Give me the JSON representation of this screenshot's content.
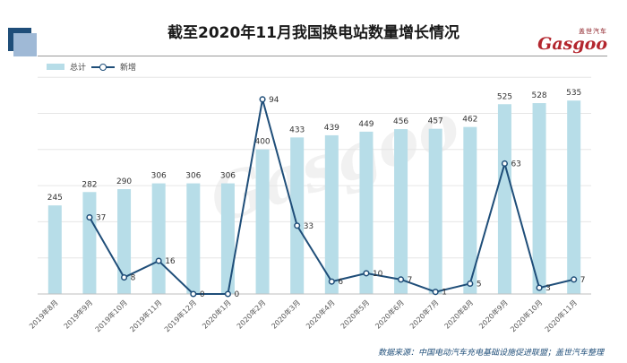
{
  "title": "截至2020年11月我国换电站数量增长情况",
  "logo": {
    "cn": "盖世汽车",
    "en": "Gasgoo",
    "sub": "",
    "color": "#b3262e"
  },
  "watermark": "Gasgoo",
  "legend": {
    "bar": "总计",
    "line": "新增"
  },
  "source": "数据来源：中国电动汽车充电基础设施促进联盟；盖世汽车整理",
  "colors": {
    "bar": "#b7dde8",
    "line": "#1f4e79",
    "accent": "#1f4e79"
  },
  "chart_data": {
    "type": "bar",
    "title": "截至2020年11月我国换电站数量增长情况",
    "categories": [
      "2019年8月",
      "2019年9月",
      "2019年10月",
      "2019年11月",
      "2019年12月",
      "2020年1月",
      "2020年2月",
      "2020年3月",
      "2020年4月",
      "2020年5月",
      "2020年6月",
      "2020年7月",
      "2020年8月",
      "2020年9月",
      "2020年10月",
      "2020年11月"
    ],
    "series": [
      {
        "name": "总计",
        "type": "bar",
        "values": [
          245,
          282,
          290,
          306,
          306,
          306,
          400,
          433,
          439,
          449,
          456,
          457,
          462,
          525,
          528,
          535
        ],
        "ylim": [
          0,
          600
        ]
      },
      {
        "name": "新增",
        "type": "line",
        "values": [
          null,
          37,
          8,
          16,
          0,
          0,
          94,
          33,
          6,
          10,
          7,
          1,
          5,
          63,
          3,
          7
        ],
        "ylim": [
          0,
          100
        ]
      }
    ],
    "grid": true,
    "legend_position": "top-left"
  }
}
